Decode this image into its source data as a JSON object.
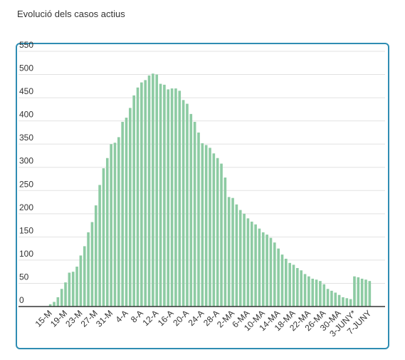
{
  "chart_data": {
    "type": "bar",
    "title": "Evolució dels casos actius",
    "categories": [
      "15-M",
      null,
      null,
      null,
      "19-M",
      null,
      null,
      null,
      "23-M",
      null,
      null,
      null,
      "27-M",
      null,
      null,
      null,
      "31-M",
      null,
      null,
      null,
      "4-A",
      null,
      null,
      null,
      "8-A",
      null,
      null,
      null,
      "12-A",
      null,
      null,
      null,
      "16-A",
      null,
      null,
      null,
      "20-A",
      null,
      null,
      null,
      "24-A",
      null,
      null,
      null,
      "28-A",
      null,
      null,
      null,
      "2-MA",
      null,
      null,
      null,
      "6-MA",
      null,
      null,
      null,
      "10-MA",
      null,
      null,
      null,
      "14-MA",
      null,
      null,
      null,
      "18-MA",
      null,
      null,
      null,
      "22-MA",
      null,
      null,
      null,
      "26-MA",
      null,
      null,
      null,
      "30-MA",
      null,
      null,
      null,
      "3-JUNY*",
      null,
      null,
      null,
      "7-JUNY"
    ],
    "values": [
      5,
      10,
      20,
      38,
      52,
      73,
      75,
      86,
      110,
      130,
      160,
      182,
      218,
      262,
      298,
      320,
      350,
      353,
      365,
      398,
      407,
      428,
      455,
      472,
      483,
      488,
      498,
      502,
      500,
      480,
      478,
      468,
      470,
      470,
      465,
      445,
      437,
      415,
      398,
      375,
      352,
      348,
      342,
      330,
      320,
      308,
      278,
      236,
      234,
      220,
      208,
      200,
      190,
      183,
      177,
      168,
      160,
      155,
      148,
      138,
      125,
      112,
      103,
      94,
      90,
      83,
      78,
      70,
      65,
      60,
      58,
      55,
      48,
      38,
      34,
      30,
      25,
      20,
      18,
      16,
      65,
      63,
      60,
      58,
      55
    ],
    "color": "#8dcba3",
    "ylim": [
      0,
      550
    ],
    "yticks": [
      0,
      50,
      100,
      150,
      200,
      250,
      300,
      350,
      400,
      450,
      500,
      550
    ],
    "grid": true
  }
}
